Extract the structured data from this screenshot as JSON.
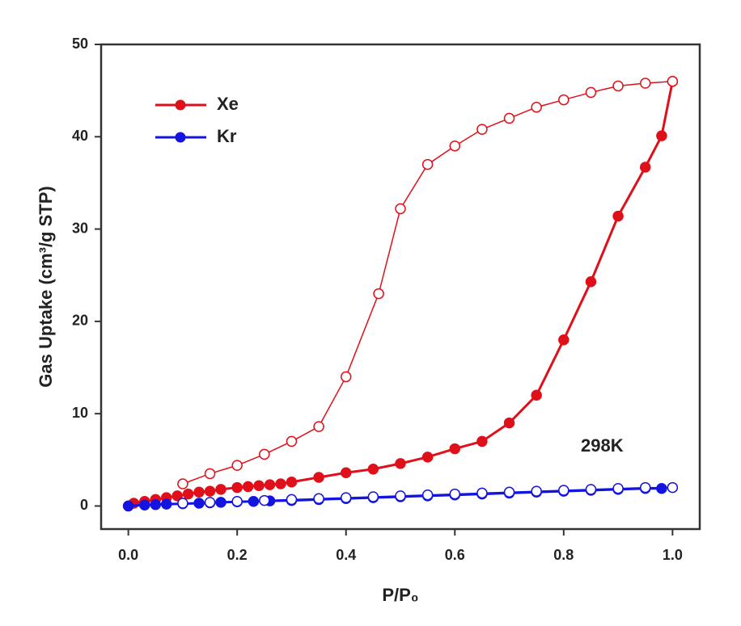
{
  "chart_data": {
    "type": "line",
    "xlabel": "P/P₀",
    "ylabel": "Gas Uptake (cm³/g STP)",
    "annotation": "298K",
    "xlim": [
      -0.05,
      1.05
    ],
    "ylim": [
      -2.5,
      50
    ],
    "xticks": [
      {
        "value": 0,
        "label": "0.0"
      },
      0.2,
      0.4,
      0.6,
      0.8,
      {
        "value": 1,
        "label": "1.0"
      }
    ],
    "yticks": [
      0,
      10,
      20,
      30,
      40,
      50
    ],
    "legend": "upper left",
    "series": [
      {
        "name": "Xe",
        "color": "#e0101a",
        "marker": "filled",
        "x": [
          0,
          0.01,
          0.03,
          0.05,
          0.07,
          0.09,
          0.11,
          0.13,
          0.15,
          0.17,
          0.2,
          0.22,
          0.24,
          0.26,
          0.28,
          0.3,
          0.35,
          0.4,
          0.45,
          0.5,
          0.55,
          0.6,
          0.65,
          0.7,
          0.75,
          0.8,
          0.85,
          0.9,
          0.95,
          0.98,
          1.0
        ],
        "values": [
          0,
          0.3,
          0.5,
          0.7,
          0.9,
          1.1,
          1.3,
          1.5,
          1.6,
          1.8,
          2.0,
          2.1,
          2.2,
          2.3,
          2.4,
          2.6,
          3.1,
          3.6,
          4.0,
          4.6,
          5.3,
          6.2,
          7.0,
          9.0,
          12.0,
          18.0,
          24.3,
          31.4,
          36.7,
          40.1,
          46.0
        ]
      },
      {
        "color": "#e0101a",
        "marker": "open",
        "x": [
          1.0,
          0.95,
          0.9,
          0.85,
          0.8,
          0.75,
          0.7,
          0.65,
          0.6,
          0.55,
          0.5,
          0.46,
          0.4,
          0.35,
          0.3,
          0.25,
          0.2,
          0.15,
          0.1
        ],
        "values": [
          46.0,
          45.8,
          45.5,
          44.8,
          44.0,
          43.2,
          42.0,
          40.8,
          39.0,
          37.0,
          32.2,
          23.0,
          14.0,
          8.6,
          7.0,
          5.6,
          4.4,
          3.5,
          2.4
        ]
      },
      {
        "name": "Kr",
        "color": "#1414e0",
        "marker": "filled",
        "x": [
          0,
          0.03,
          0.05,
          0.07,
          0.1,
          0.13,
          0.15,
          0.17,
          0.2,
          0.23,
          0.26,
          0.3,
          0.35,
          0.4,
          0.45,
          0.5,
          0.55,
          0.6,
          0.65,
          0.7,
          0.75,
          0.8,
          0.85,
          0.9,
          0.95,
          0.98
        ],
        "values": [
          0,
          0.1,
          0.15,
          0.2,
          0.25,
          0.3,
          0.35,
          0.4,
          0.45,
          0.5,
          0.55,
          0.6,
          0.7,
          0.8,
          0.9,
          1.0,
          1.1,
          1.2,
          1.3,
          1.4,
          1.5,
          1.6,
          1.7,
          1.8,
          1.9,
          1.9
        ]
      },
      {
        "color": "#1414e0",
        "marker": "open",
        "x": [
          1.0,
          0.95,
          0.9,
          0.85,
          0.8,
          0.75,
          0.7,
          0.65,
          0.6,
          0.55,
          0.5,
          0.45,
          0.4,
          0.35,
          0.3,
          0.25,
          0.2,
          0.15,
          0.1
        ],
        "values": [
          2.0,
          2.0,
          1.9,
          1.8,
          1.7,
          1.6,
          1.5,
          1.4,
          1.3,
          1.2,
          1.1,
          1.0,
          0.9,
          0.8,
          0.7,
          0.6,
          0.5,
          0.4,
          0.3
        ]
      }
    ]
  }
}
